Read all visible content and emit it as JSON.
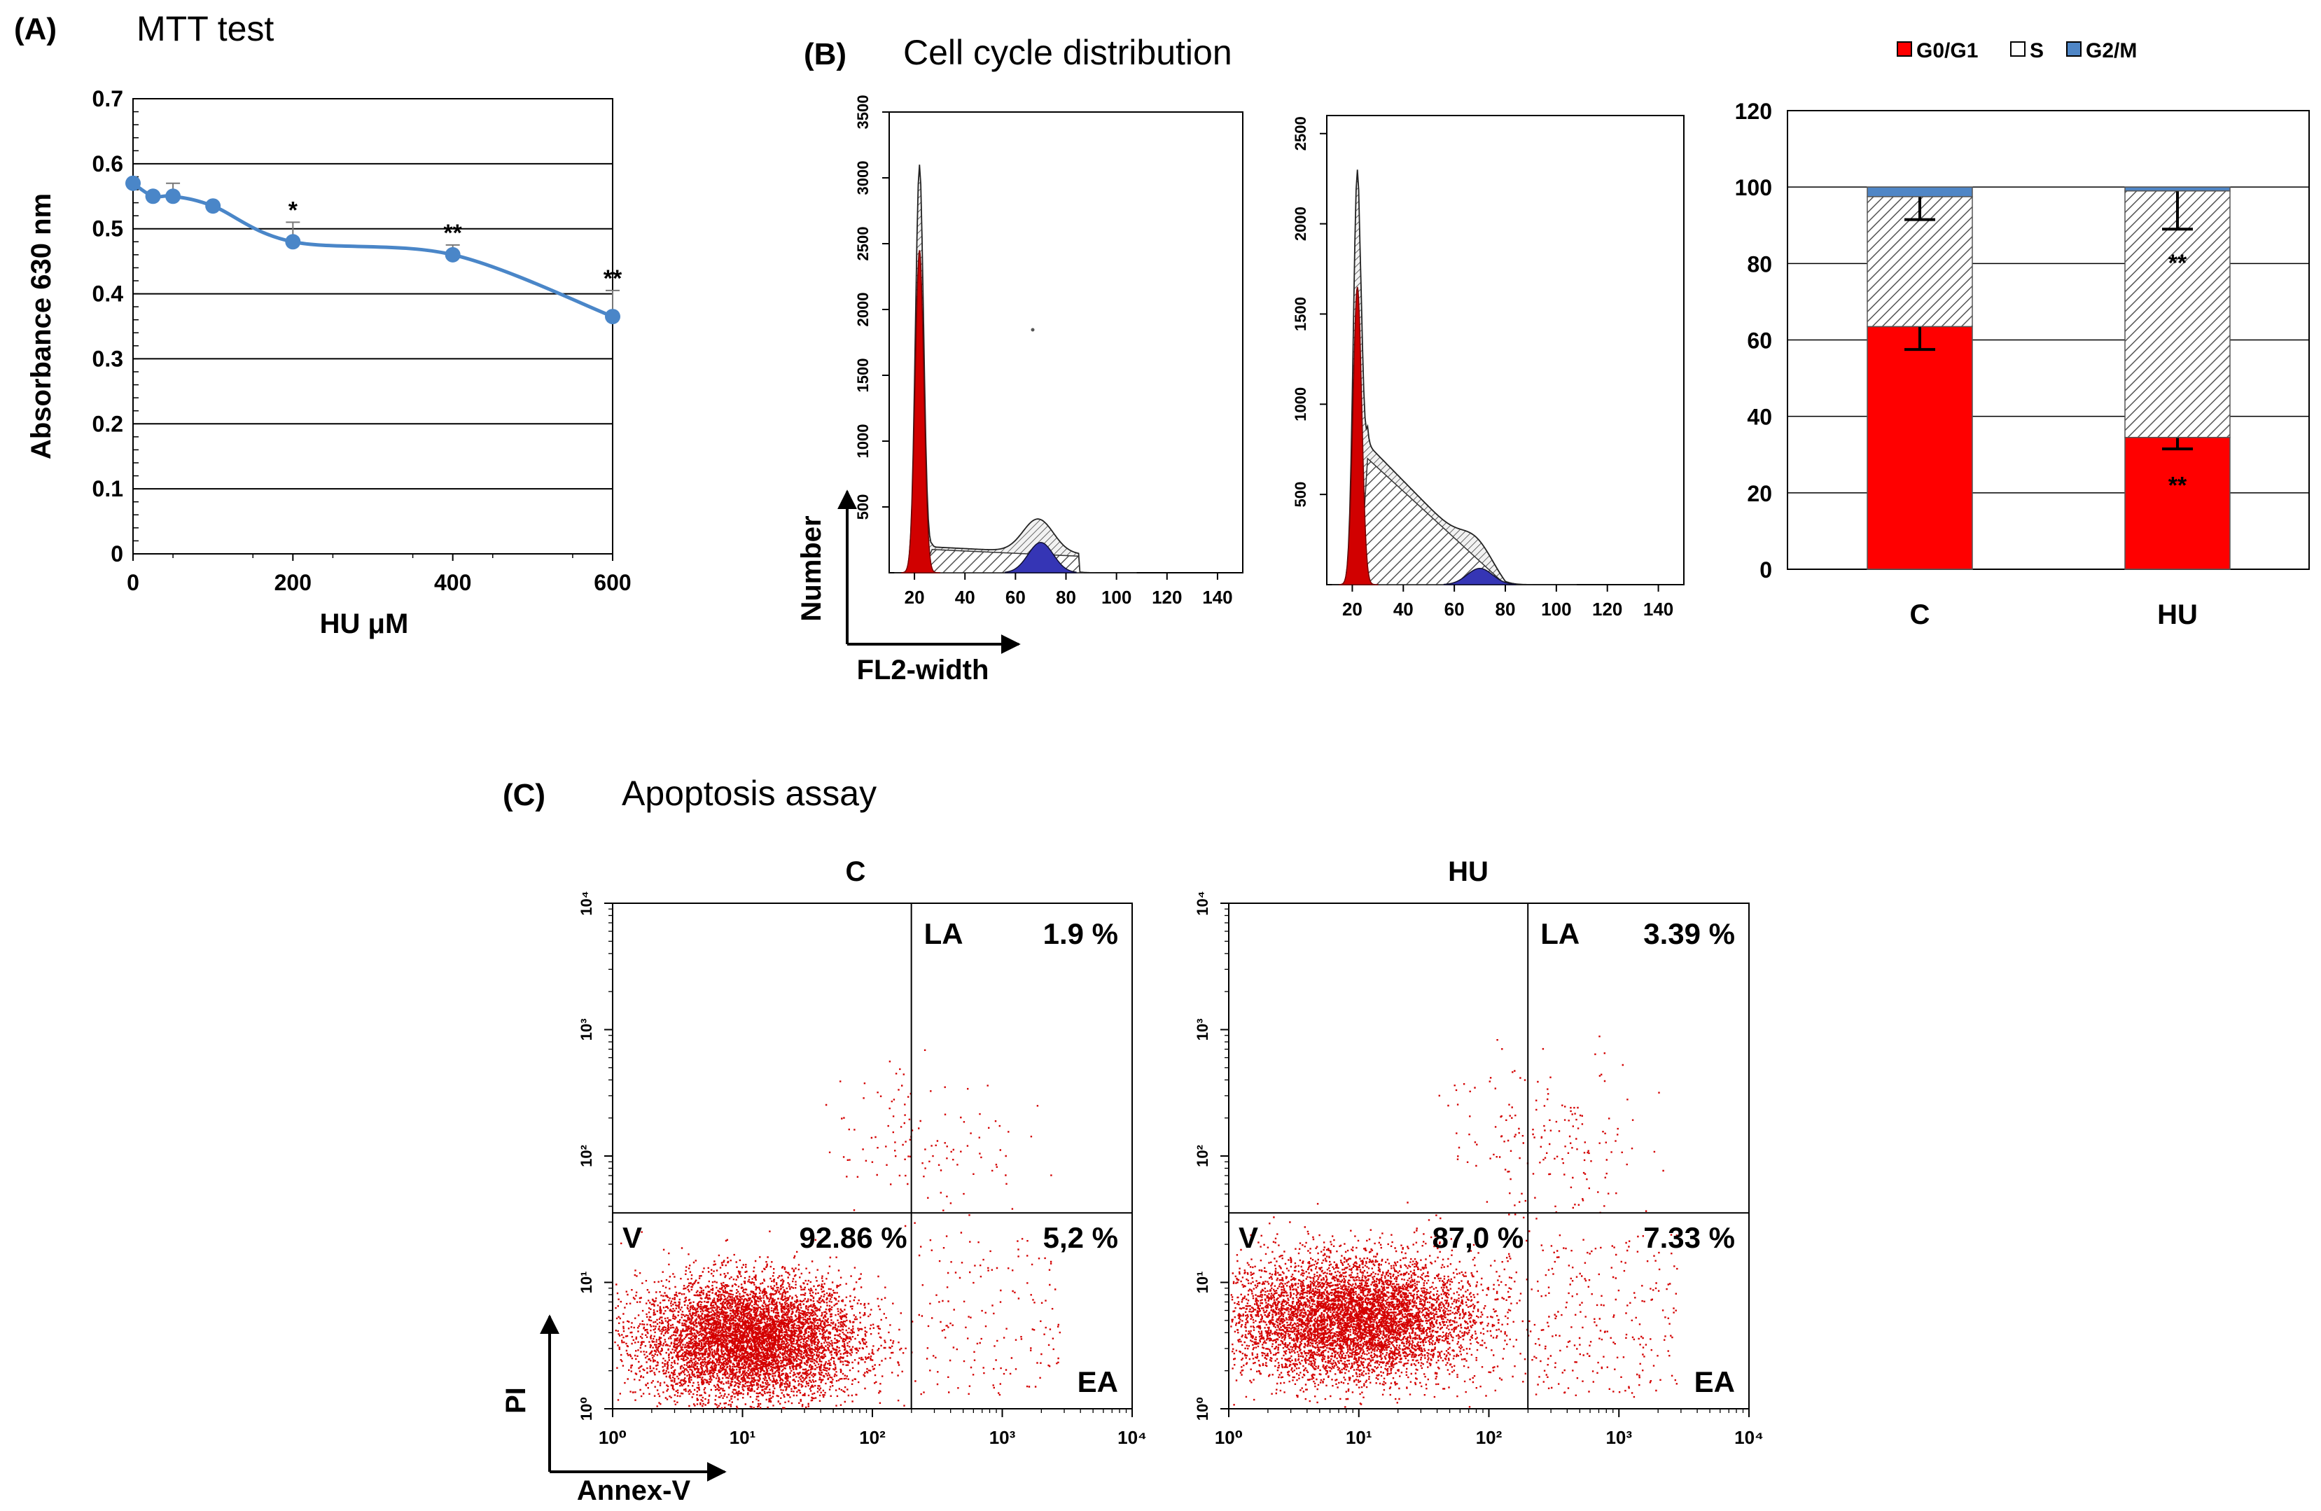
{
  "colors": {
    "line": "#4a86c8",
    "g0g1": "#ff0000",
    "s": "#d8d8d8",
    "g2m": "#4f86c6",
    "hist_red": "#d10000",
    "hist_blue": "#3535b5",
    "dots": "#d40000"
  },
  "chart_data": [
    {
      "id": "A",
      "type": "line",
      "panel_label": "(A)",
      "title": "MTT test",
      "xlabel": "HU μM",
      "ylabel": "Absorbance 630 nm",
      "xlim": [
        0,
        600
      ],
      "ylim": [
        0,
        0.7
      ],
      "xticks": [
        "0",
        "200",
        "400",
        "600"
      ],
      "yticks": [
        "0",
        "0.1",
        "0.2",
        "0.3",
        "0.4",
        "0.5",
        "0.6",
        "0.7"
      ],
      "grid": true,
      "points": [
        {
          "x": 0,
          "y": 0.57,
          "err": 0.0,
          "sig": ""
        },
        {
          "x": 25,
          "y": 0.55,
          "err": 0.0,
          "sig": ""
        },
        {
          "x": 50,
          "y": 0.55,
          "err": 0.02,
          "sig": ""
        },
        {
          "x": 100,
          "y": 0.535,
          "err": 0.0,
          "sig": ""
        },
        {
          "x": 200,
          "y": 0.48,
          "err": 0.03,
          "sig": "*"
        },
        {
          "x": 400,
          "y": 0.46,
          "err": 0.015,
          "sig": "**"
        },
        {
          "x": 600,
          "y": 0.365,
          "err": 0.04,
          "sig": "**"
        }
      ]
    },
    {
      "id": "B-hist-C",
      "type": "area",
      "panel_label": "(B)",
      "title": "Cell cycle distribution",
      "xlabel": "FL2-width",
      "ylabel": "Number",
      "xticks": [
        "20",
        "40",
        "60",
        "80",
        "100",
        "120",
        "140"
      ],
      "yticks": [
        "500",
        "1000",
        "1500",
        "2000",
        "2500",
        "3000",
        "3500"
      ],
      "xlim": [
        10,
        150
      ],
      "ylim": [
        0,
        3500
      ],
      "peaks": {
        "g0g1_max": 2450,
        "envelope_max": 3100,
        "g2m_max": 230
      }
    },
    {
      "id": "B-hist-HU",
      "type": "area",
      "xticks": [
        "20",
        "40",
        "60",
        "80",
        "100",
        "120",
        "140"
      ],
      "yticks": [
        "500",
        "1000",
        "1500",
        "2000",
        "2500"
      ],
      "xlim": [
        10,
        150
      ],
      "ylim": [
        0,
        2600
      ],
      "peaks": {
        "g0g1_max": 1650,
        "envelope_max": 2300,
        "g2m_max": 90
      }
    },
    {
      "id": "B-bar",
      "type": "bar",
      "stacked": true,
      "categories": [
        "C",
        "HU"
      ],
      "ylim": [
        0,
        120
      ],
      "yticks": [
        "0",
        "20",
        "40",
        "60",
        "80",
        "100",
        "120"
      ],
      "legend": [
        "G0/G1",
        "S",
        "G2/M"
      ],
      "legend_position": "top",
      "series": [
        {
          "name": "G0/G1",
          "values": [
            63.5,
            34.5
          ],
          "err": [
            6,
            3
          ],
          "sig": [
            "",
            "**"
          ]
        },
        {
          "name": "S",
          "values": [
            34.0,
            64.5
          ],
          "err": [
            6,
            10
          ],
          "sig": [
            "",
            "**"
          ]
        },
        {
          "name": "G2/M",
          "values": [
            2.5,
            1.0
          ],
          "err": [
            0,
            0
          ],
          "sig": [
            "",
            ""
          ]
        }
      ]
    },
    {
      "id": "C-dot-C",
      "type": "scatter",
      "panel_label": "(C)",
      "title": "Apoptosis assay",
      "plot_title": "C",
      "xlabel": "Annex-V",
      "ylabel": "PI",
      "xticks": [
        "10⁰",
        "10¹",
        "10²",
        "10³",
        "10⁴"
      ],
      "yticks": [
        "10⁰",
        "10¹",
        "10²",
        "10³",
        "10⁴"
      ],
      "scale": "log",
      "quadrants": {
        "LA": {
          "label": "LA",
          "value": "1.9 %"
        },
        "V": {
          "label": "V",
          "value": "92.86 %"
        },
        "EA": {
          "label": "EA",
          "value": "5,2 %"
        }
      }
    },
    {
      "id": "C-dot-HU",
      "type": "scatter",
      "plot_title": "HU",
      "xticks": [
        "10⁰",
        "10¹",
        "10²",
        "10³",
        "10⁴"
      ],
      "yticks": [
        "10⁰",
        "10¹",
        "10²",
        "10³",
        "10⁴"
      ],
      "scale": "log",
      "quadrants": {
        "LA": {
          "label": "LA",
          "value": "3.39 %"
        },
        "V": {
          "label": "V",
          "value": "87,0 %"
        },
        "EA": {
          "label": "EA",
          "value": "7.33 %"
        }
      }
    }
  ]
}
